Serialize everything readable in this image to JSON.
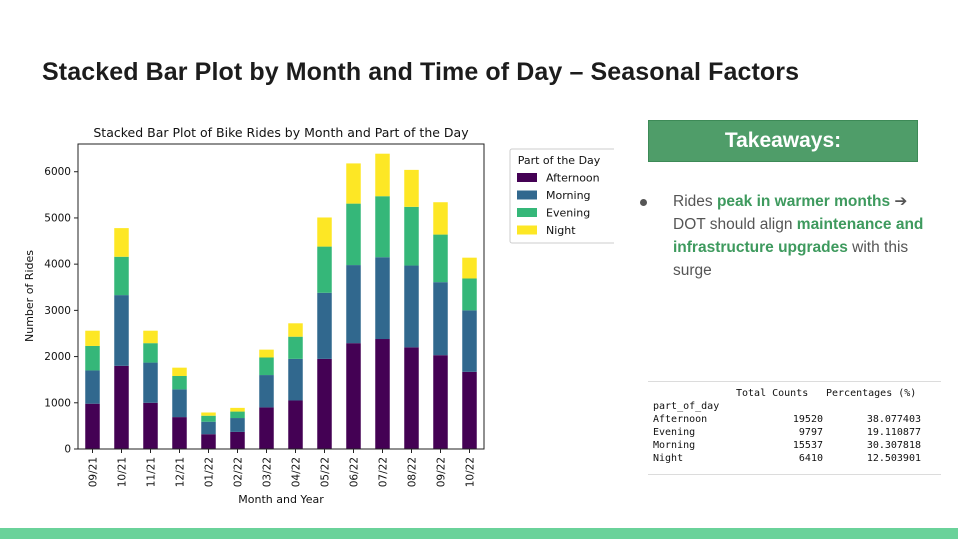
{
  "slide": {
    "title": "Stacked Bar Plot by Month and Time of Day – Seasonal Factors"
  },
  "takeaways": {
    "heading": "Takeaways:",
    "bullet": {
      "t1": "Rides ",
      "h1": "peak in warmer months",
      "arrow": " ➔",
      "t2": " DOT should align ",
      "h2": "maintenance and infrastructure upgrades",
      "t3": " with this surge"
    }
  },
  "stats_table": {
    "columns": [
      "Total Counts",
      "Percentages (%)"
    ],
    "index_name": "part_of_day",
    "rows": [
      {
        "label": "Afternoon",
        "count": "19520",
        "pct": "38.077403"
      },
      {
        "label": "Evening",
        "count": "9797",
        "pct": "19.110877"
      },
      {
        "label": "Morning",
        "count": "15537",
        "pct": "30.307818"
      },
      {
        "label": "Night",
        "count": "6410",
        "pct": "12.503901"
      }
    ]
  },
  "chart_data": {
    "type": "bar",
    "stacked": true,
    "title": "Stacked Bar Plot of Bike Rides by Month and Part of the Day",
    "xlabel": "Month and Year",
    "ylabel": "Number of Rides",
    "ylim": [
      0,
      6600
    ],
    "yticks": [
      0,
      1000,
      2000,
      3000,
      4000,
      5000,
      6000
    ],
    "grid": false,
    "legend_title": "Part of the Day",
    "legend_position": "upper right, outside plot",
    "categories": [
      "09/21",
      "10/21",
      "11/21",
      "12/21",
      "01/22",
      "02/22",
      "03/22",
      "04/22",
      "05/22",
      "06/22",
      "07/22",
      "08/22",
      "09/22",
      "10/22"
    ],
    "series": [
      {
        "name": "Afternoon",
        "color": "#440154",
        "values": [
          980,
          1800,
          1000,
          690,
          320,
          370,
          900,
          1050,
          1950,
          2290,
          2380,
          2200,
          2030,
          1670
        ]
      },
      {
        "name": "Morning",
        "color": "#31688e",
        "values": [
          720,
          1530,
          870,
          600,
          270,
          300,
          700,
          900,
          1430,
          1690,
          1770,
          1770,
          1580,
          1330
        ]
      },
      {
        "name": "Evening",
        "color": "#35b779",
        "values": [
          530,
          830,
          420,
          290,
          130,
          140,
          380,
          480,
          1000,
          1330,
          1320,
          1270,
          1030,
          690
        ]
      },
      {
        "name": "Night",
        "color": "#fde725",
        "values": [
          330,
          620,
          270,
          180,
          70,
          80,
          170,
          290,
          630,
          870,
          920,
          800,
          700,
          450
        ]
      }
    ]
  }
}
